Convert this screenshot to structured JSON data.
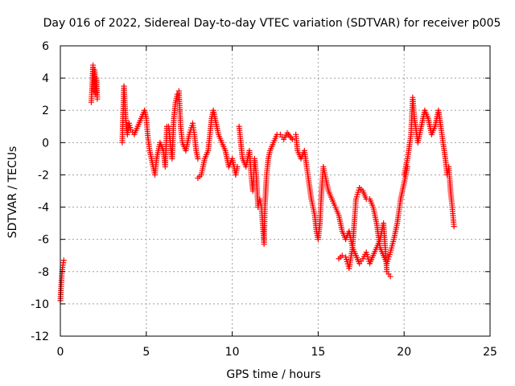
{
  "chart_data": {
    "type": "scatter",
    "title": "Day 016 of 2022, Sidereal Day-to-day VTEC variation (SDTVAR) for receiver p005",
    "xlabel": "GPS time / hours",
    "ylabel": "SDTVAR / TECUs",
    "xlim": [
      0,
      25
    ],
    "ylim": [
      -12,
      6
    ],
    "x_ticks": [
      0,
      5,
      10,
      15,
      20,
      25
    ],
    "y_ticks": [
      -12,
      -10,
      -8,
      -6,
      -4,
      -2,
      0,
      2,
      4,
      6
    ],
    "grid": true,
    "marker": "+",
    "color": "#ff0000",
    "series": [
      {
        "name": "SDTVAR",
        "segments": [
          [
            [
              0.0,
              -9.8
            ],
            [
              0.05,
              -8.8
            ],
            [
              0.1,
              -8.0
            ],
            [
              0.15,
              -7.6
            ],
            [
              0.2,
              -7.3
            ]
          ],
          [
            [
              1.8,
              2.5
            ],
            [
              1.85,
              3.5
            ],
            [
              1.9,
              4.8
            ],
            [
              1.95,
              3.2
            ],
            [
              2.0,
              4.5
            ],
            [
              2.05,
              3.0
            ],
            [
              2.1,
              4.0
            ],
            [
              2.15,
              2.7
            ]
          ],
          [
            [
              3.6,
              0.0
            ],
            [
              3.7,
              3.5
            ],
            [
              3.8,
              1.5
            ],
            [
              3.9,
              0.5
            ],
            [
              4.0,
              1.2
            ],
            [
              4.1,
              0.8
            ],
            [
              4.3,
              0.5
            ],
            [
              4.5,
              1.0
            ],
            [
              4.7,
              1.5
            ],
            [
              4.9,
              2.0
            ],
            [
              5.0,
              1.5
            ],
            [
              5.1,
              0.3
            ],
            [
              5.2,
              -0.5
            ],
            [
              5.4,
              -1.5
            ],
            [
              5.5,
              -2.0
            ],
            [
              5.6,
              -1.0
            ],
            [
              5.8,
              0.0
            ],
            [
              6.0,
              -0.5
            ],
            [
              6.1,
              -1.5
            ],
            [
              6.2,
              1.0
            ]
          ],
          [
            [
              6.3,
              1.0
            ],
            [
              6.4,
              0.0
            ],
            [
              6.5,
              -1.0
            ],
            [
              6.6,
              1.5
            ],
            [
              6.7,
              2.5
            ],
            [
              6.8,
              3.0
            ],
            [
              6.9,
              3.2
            ],
            [
              7.0,
              1.0
            ],
            [
              7.1,
              0.0
            ],
            [
              7.3,
              -0.5
            ],
            [
              7.5,
              0.5
            ],
            [
              7.7,
              1.2
            ],
            [
              7.8,
              0.5
            ],
            [
              7.9,
              -0.5
            ],
            [
              8.0,
              -1.0
            ]
          ],
          [
            [
              8.0,
              -2.2
            ],
            [
              8.2,
              -2.0
            ],
            [
              8.4,
              -1.0
            ],
            [
              8.6,
              -0.5
            ],
            [
              8.7,
              0.5
            ],
            [
              8.8,
              1.5
            ],
            [
              8.9,
              2.0
            ],
            [
              9.0,
              1.5
            ],
            [
              9.1,
              1.0
            ],
            [
              9.2,
              0.5
            ],
            [
              9.4,
              0.0
            ],
            [
              9.6,
              -0.5
            ],
            [
              9.8,
              -1.5
            ],
            [
              10.0,
              -1.0
            ],
            [
              10.2,
              -2.0
            ],
            [
              10.3,
              -1.5
            ]
          ],
          [
            [
              10.4,
              1.0
            ],
            [
              10.5,
              0.0
            ],
            [
              10.6,
              -1.0
            ],
            [
              10.8,
              -1.5
            ],
            [
              11.0,
              -0.5
            ],
            [
              11.1,
              -2.0
            ],
            [
              11.2,
              -3.0
            ],
            [
              11.3,
              -1.0
            ],
            [
              11.4,
              -2.0
            ],
            [
              11.5,
              -4.0
            ],
            [
              11.6,
              -3.5
            ],
            [
              11.7,
              -4.0
            ],
            [
              11.8,
              -5.5
            ],
            [
              11.85,
              -6.3
            ],
            [
              11.9,
              -4.0
            ],
            [
              12.0,
              -2.0
            ],
            [
              12.1,
              -1.0
            ],
            [
              12.2,
              -0.5
            ],
            [
              12.4,
              0.0
            ],
            [
              12.6,
              0.5
            ],
            [
              12.8,
              0.5
            ],
            [
              13.0,
              0.2
            ],
            [
              13.2,
              0.6
            ],
            [
              13.5,
              0.2
            ]
          ],
          [
            [
              13.7,
              0.5
            ],
            [
              13.8,
              -0.5
            ],
            [
              14.0,
              -1.0
            ],
            [
              14.2,
              -0.5
            ],
            [
              14.4,
              -2.0
            ],
            [
              14.6,
              -3.5
            ],
            [
              14.8,
              -4.5
            ],
            [
              14.9,
              -5.5
            ],
            [
              15.0,
              -6.0
            ],
            [
              15.1,
              -5.0
            ],
            [
              15.2,
              -3.0
            ],
            [
              15.3,
              -1.5
            ],
            [
              15.4,
              -2.0
            ],
            [
              15.6,
              -3.0
            ],
            [
              15.8,
              -3.5
            ],
            [
              16.0,
              -4.0
            ],
            [
              16.2,
              -4.5
            ],
            [
              16.4,
              -5.5
            ],
            [
              16.6,
              -6.0
            ],
            [
              16.8,
              -5.5
            ],
            [
              17.0,
              -6.5
            ],
            [
              17.2,
              -7.0
            ],
            [
              17.4,
              -7.5
            ],
            [
              17.6,
              -7.2
            ],
            [
              17.8,
              -6.8
            ],
            [
              18.0,
              -7.5
            ],
            [
              18.2,
              -7.0
            ],
            [
              18.4,
              -6.5
            ],
            [
              18.6,
              -6.0
            ],
            [
              18.8,
              -5.0
            ],
            [
              19.0,
              -8.0
            ],
            [
              19.2,
              -8.3
            ]
          ],
          [
            [
              16.2,
              -7.2
            ],
            [
              16.4,
              -7.0
            ],
            [
              16.6,
              -7.1
            ],
            [
              16.8,
              -7.8
            ],
            [
              17.0,
              -6.5
            ],
            [
              17.2,
              -3.5
            ],
            [
              17.4,
              -2.8
            ],
            [
              17.6,
              -3.0
            ],
            [
              17.8,
              -3.5
            ],
            [
              18.0,
              -3.5
            ],
            [
              18.2,
              -4.0
            ],
            [
              18.4,
              -5.0
            ],
            [
              18.6,
              -6.5
            ],
            [
              18.8,
              -7.0
            ],
            [
              19.0,
              -7.5
            ],
            [
              19.2,
              -6.8
            ],
            [
              19.4,
              -6.0
            ],
            [
              19.6,
              -5.0
            ],
            [
              19.8,
              -3.5
            ],
            [
              20.0,
              -2.5
            ],
            [
              20.2,
              -1.5
            ]
          ],
          [
            [
              20.0,
              -2.0
            ],
            [
              20.2,
              -1.0
            ],
            [
              20.4,
              0.5
            ],
            [
              20.5,
              2.8
            ],
            [
              20.6,
              1.5
            ],
            [
              20.8,
              0.0
            ],
            [
              21.0,
              1.0
            ],
            [
              21.2,
              2.0
            ],
            [
              21.4,
              1.5
            ],
            [
              21.6,
              0.5
            ],
            [
              21.8,
              1.0
            ],
            [
              22.0,
              2.0
            ],
            [
              22.2,
              0.5
            ],
            [
              22.4,
              -1.0
            ],
            [
              22.5,
              -2.0
            ],
            [
              22.6,
              -1.5
            ],
            [
              22.7,
              -3.0
            ],
            [
              22.8,
              -4.0
            ],
            [
              22.9,
              -5.2
            ]
          ]
        ]
      }
    ]
  }
}
